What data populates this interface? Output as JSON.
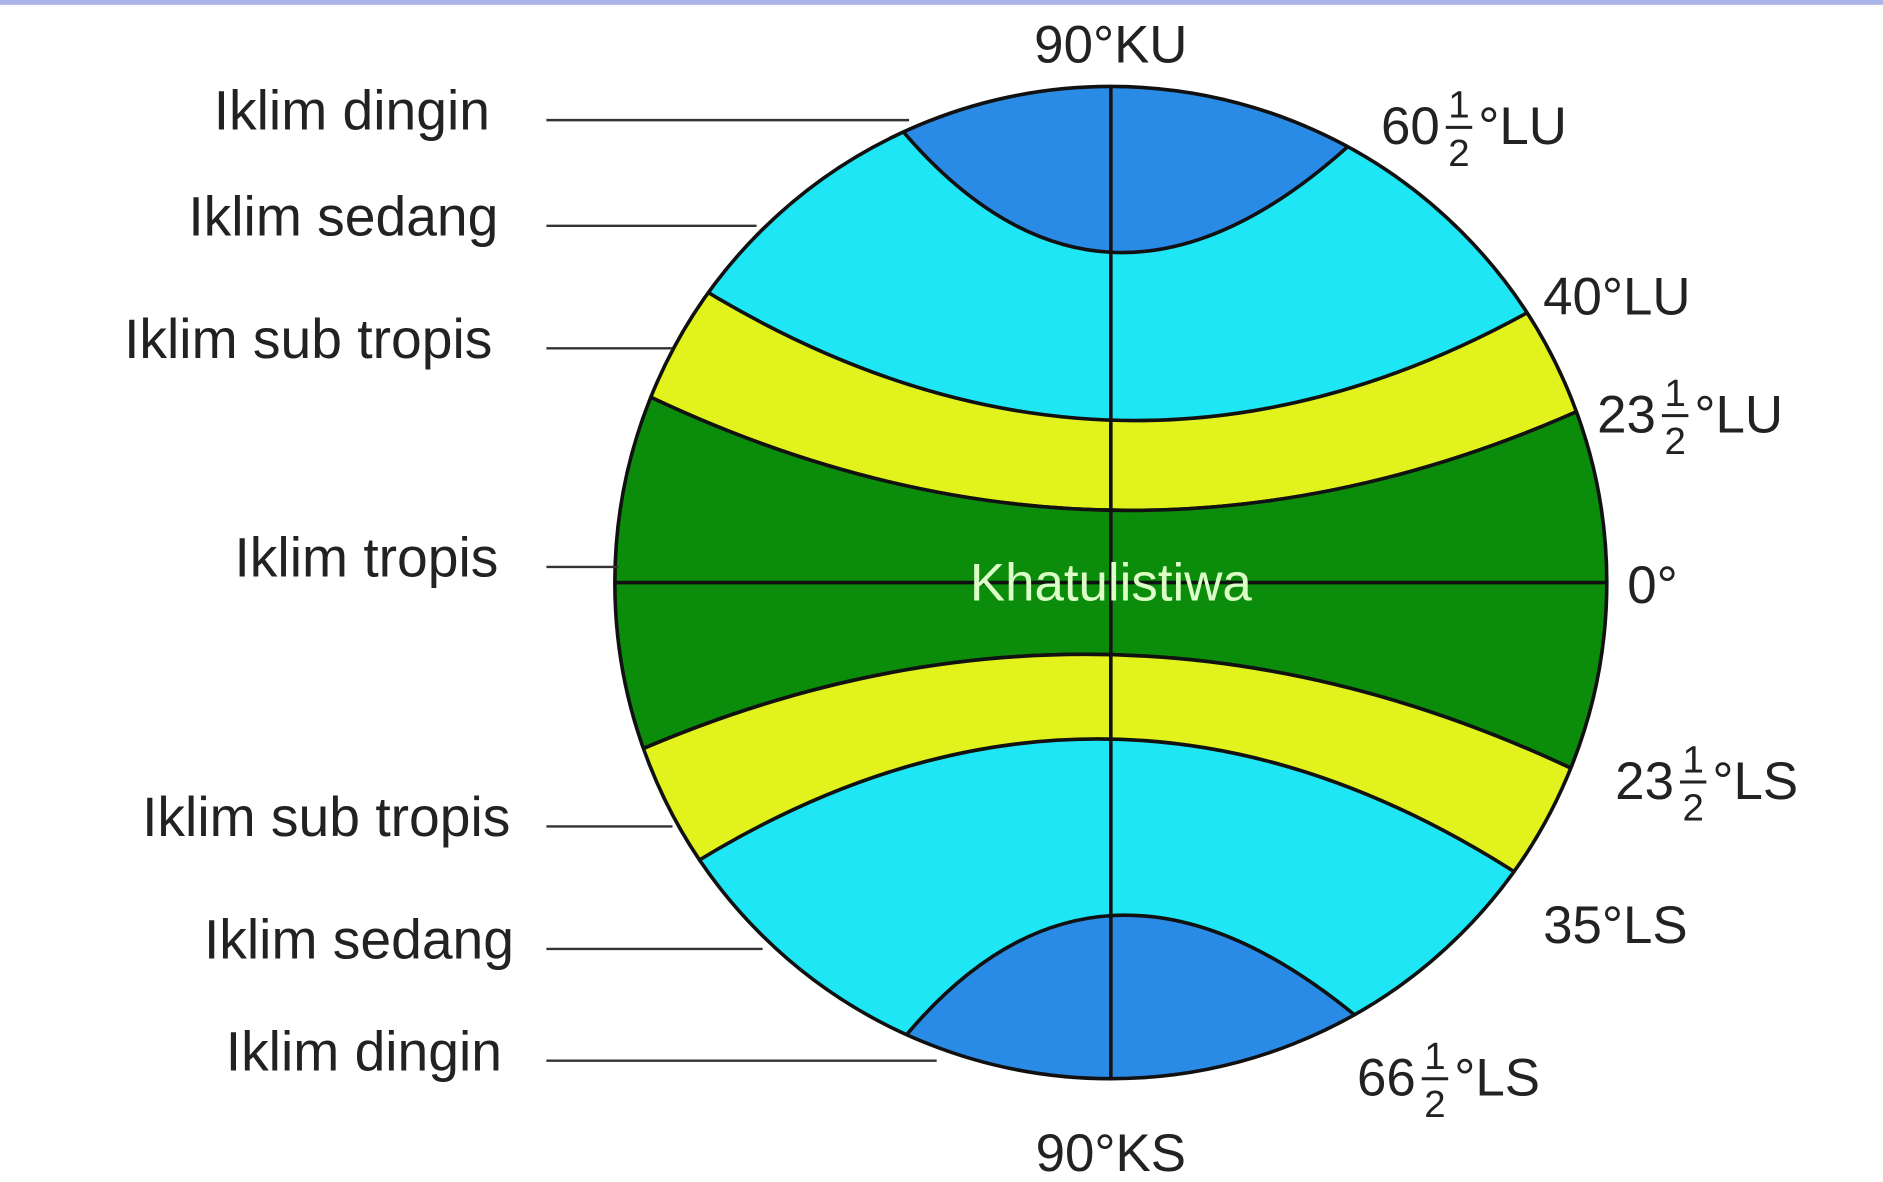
{
  "top_label": "90°KU",
  "bottom_label": "90°KS",
  "equator_label": "Khatulistiwa",
  "left_labels": [
    "Iklim dingin",
    "Iklim sedang",
    "Iklim sub tropis",
    "Iklim tropis",
    "Iklim sub tropis",
    "Iklim sedang",
    "Iklim dingin"
  ],
  "right_labels": [
    {
      "whole": "60",
      "numerator": "1",
      "denominator": "2",
      "unit": "°LU"
    },
    {
      "text": "40°LU"
    },
    {
      "whole": "23",
      "numerator": "1",
      "denominator": "2",
      "unit": "°LU"
    },
    {
      "text": "0°"
    },
    {
      "whole": "23",
      "numerator": "1",
      "denominator": "2",
      "unit": "°LS"
    },
    {
      "text": "35°LS"
    },
    {
      "whole": "66",
      "numerator": "1",
      "denominator": "2",
      "unit": "°LS"
    }
  ]
}
